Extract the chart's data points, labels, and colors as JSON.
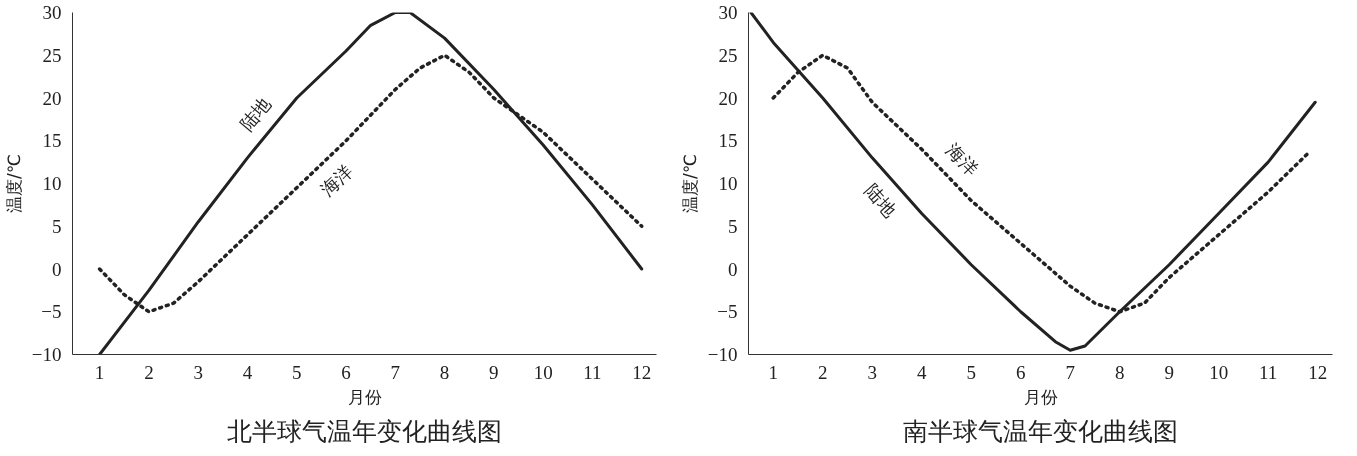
{
  "chart_data": [
    {
      "type": "line",
      "title": "北半球气温年变化曲线图",
      "xlabel": "月份",
      "ylabel": "温度/℃",
      "xlim": [
        0.45,
        12.3
      ],
      "xticks": [
        1,
        2,
        3,
        4,
        5,
        6,
        7,
        8,
        9,
        10,
        11,
        12
      ],
      "ylim": [
        -10,
        30
      ],
      "yticks": [
        -10,
        -5,
        0,
        5,
        10,
        15,
        20,
        25,
        30
      ],
      "grid": false,
      "marker": "none",
      "series": [
        {
          "name": "陆地",
          "color": "#222222",
          "line_style": "solid",
          "x": [
            1,
            2,
            3,
            4,
            5,
            6,
            6.5,
            7,
            7.3,
            8,
            9,
            10,
            11,
            12
          ],
          "values": [
            -10,
            -2.5,
            5.5,
            13,
            20,
            25.5,
            28.5,
            30,
            30,
            27,
            21,
            14.5,
            7.5,
            0
          ]
        },
        {
          "name": "海洋",
          "color": "#222222",
          "line_style": "dotted",
          "x": [
            1,
            1.5,
            2,
            2.5,
            3,
            4,
            5,
            6,
            7,
            7.5,
            8,
            8.5,
            9,
            10,
            11,
            12
          ],
          "values": [
            0,
            -3,
            -5,
            -4,
            -1.5,
            4,
            9.5,
            15,
            21,
            23.5,
            25,
            23,
            20,
            16,
            10.5,
            5
          ]
        }
      ]
    },
    {
      "type": "line",
      "title": "南半球气温年变化曲线图",
      "xlabel": "月份",
      "ylabel": "温度/℃",
      "xlim": [
        0.5,
        12.3
      ],
      "xticks": [
        1,
        2,
        3,
        4,
        5,
        6,
        7,
        8,
        9,
        10,
        11,
        12
      ],
      "ylim": [
        -10,
        30
      ],
      "yticks": [
        -10,
        -5,
        0,
        5,
        10,
        15,
        20,
        25,
        30
      ],
      "grid": false,
      "marker": "none",
      "series": [
        {
          "name": "陆地",
          "color": "#222222",
          "line_style": "solid",
          "x": [
            0.55,
            1,
            2,
            3,
            4,
            5,
            6,
            6.7,
            7,
            7.3,
            8,
            9,
            10,
            11,
            11.95
          ],
          "values": [
            30,
            26.5,
            20,
            13,
            6.5,
            0.5,
            -5,
            -8.5,
            -9.5,
            -9,
            -5,
            0.5,
            6.5,
            12.5,
            19.5
          ]
        },
        {
          "name": "海洋",
          "color": "#222222",
          "line_style": "dotted",
          "x": [
            1,
            1.5,
            2,
            2.5,
            3,
            4,
            5,
            6,
            7,
            7.5,
            8,
            8.5,
            9,
            10,
            11,
            11.8
          ],
          "values": [
            20,
            23,
            25,
            23.5,
            19.5,
            14,
            8,
            3,
            -2,
            -4,
            -5,
            -4,
            -1,
            4,
            9,
            13.5
          ]
        }
      ]
    }
  ]
}
